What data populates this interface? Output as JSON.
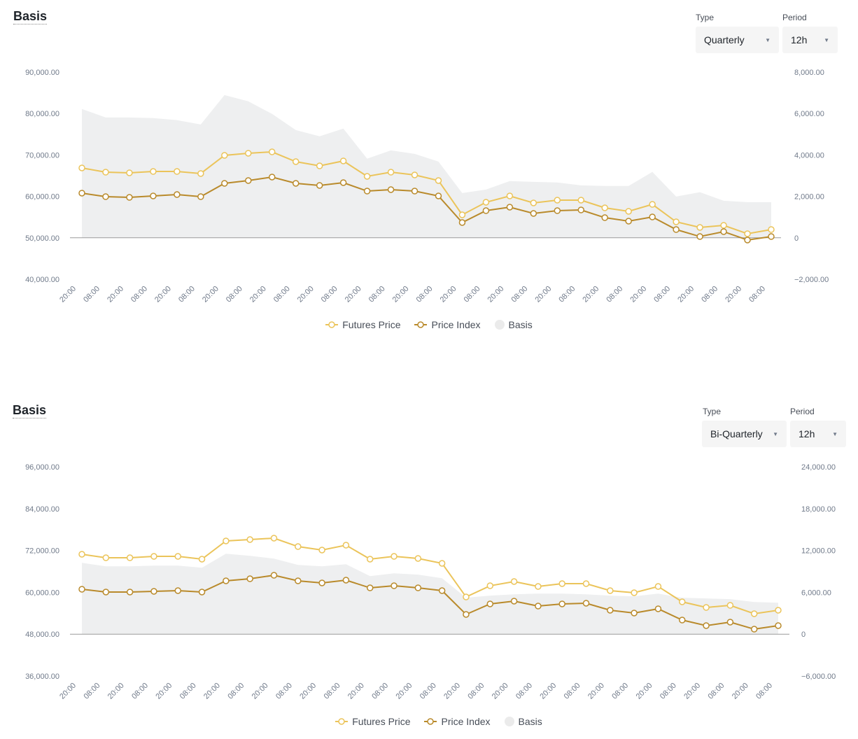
{
  "colors": {
    "futures": "#ebc45a",
    "index": "#b98a2b",
    "basis": "#eeeff0"
  },
  "chart_data": [
    {
      "type": "line",
      "title": "Basis",
      "type_label": "Type",
      "type_value": "Quarterly",
      "period_label": "Period",
      "period_value": "12h",
      "x": [
        "20:00",
        "08:00",
        "20:00",
        "08:00",
        "20:00",
        "08:00",
        "20:00",
        "08:00",
        "20:00",
        "08:00",
        "20:00",
        "08:00",
        "20:00",
        "08:00",
        "20:00",
        "08:00",
        "20:00",
        "08:00",
        "20:00",
        "08:00",
        "20:00",
        "08:00",
        "20:00",
        "08:00",
        "20:00",
        "08:00",
        "20:00",
        "08:00",
        "20:00",
        "08:00"
      ],
      "ylim_left": [
        40000,
        90000
      ],
      "ylim_right": [
        -2000,
        8000
      ],
      "left_ticks": [
        "90,000.00",
        "80,000.00",
        "70,000.00",
        "60,000.00",
        "50,000.00",
        "40,000.00"
      ],
      "right_ticks": [
        "8,000.00",
        "6,000.00",
        "4,000.00",
        "2,000.00",
        "0",
        "−2,000.00"
      ],
      "series": [
        {
          "name": "Futures Price",
          "axis": "left",
          "values": [
            66860,
            65840,
            65680,
            66010,
            66010,
            65510,
            69900,
            70410,
            70740,
            68380,
            67360,
            68550,
            64830,
            65840,
            65170,
            63820,
            55540,
            58580,
            60100,
            58410,
            59090,
            59090,
            57230,
            56390,
            58070,
            53850,
            52500,
            53000,
            50980,
            51990
          ]
        },
        {
          "name": "Price Index",
          "axis": "left",
          "values": [
            60780,
            59930,
            59760,
            60100,
            60440,
            59930,
            63140,
            63820,
            64660,
            63140,
            62640,
            63310,
            61280,
            61620,
            61280,
            60100,
            53680,
            56550,
            57400,
            55880,
            56550,
            56720,
            54860,
            54020,
            55030,
            51990,
            50300,
            51490,
            49460,
            50300
          ]
        },
        {
          "name": "Basis",
          "axis": "right",
          "type": "area",
          "values": [
            6220,
            5810,
            5810,
            5780,
            5680,
            5470,
            6890,
            6590,
            5980,
            5200,
            4900,
            5270,
            3820,
            4220,
            4050,
            3680,
            2160,
            2330,
            2740,
            2700,
            2670,
            2530,
            2500,
            2500,
            3180,
            1990,
            2200,
            1790,
            1720,
            1720
          ]
        }
      ],
      "legend": [
        "Futures Price",
        "Price Index",
        "Basis"
      ],
      "legend_position": "bottom-center"
    },
    {
      "type": "line",
      "title": "Basis",
      "type_label": "Type",
      "type_value": "Bi-Quarterly",
      "period_label": "Period",
      "period_value": "12h",
      "x": [
        "20:00",
        "08:00",
        "20:00",
        "08:00",
        "20:00",
        "08:00",
        "20:00",
        "08:00",
        "20:00",
        "08:00",
        "20:00",
        "08:00",
        "20:00",
        "08:00",
        "20:00",
        "08:00",
        "20:00",
        "08:00",
        "20:00",
        "08:00",
        "20:00",
        "08:00",
        "20:00",
        "08:00",
        "20:00",
        "08:00",
        "20:00",
        "08:00",
        "20:00",
        "08:00"
      ],
      "ylim_left": [
        36000,
        96000
      ],
      "ylim_right": [
        -6000,
        24000
      ],
      "left_ticks": [
        "96,000.00",
        "84,000.00",
        "72,000.00",
        "60,000.00",
        "48,000.00",
        "36,000.00"
      ],
      "right_ticks": [
        "24,000.00",
        "18,000.00",
        "12,000.00",
        "6,000.00",
        "0",
        "−6,000.00"
      ],
      "series": [
        {
          "name": "Futures Price",
          "axis": "left",
          "values": [
            70915,
            69910,
            69910,
            70310,
            70310,
            69510,
            74730,
            75130,
            75530,
            73120,
            72120,
            73520,
            69510,
            70310,
            69710,
            68310,
            58670,
            61880,
            63090,
            61680,
            62490,
            62490,
            60480,
            59880,
            61680,
            57270,
            55660,
            56260,
            53860,
            54860
          ]
        },
        {
          "name": "Price Index",
          "axis": "left",
          "values": [
            60880,
            60080,
            60080,
            60280,
            60480,
            60080,
            63290,
            63890,
            64890,
            63290,
            62690,
            63490,
            61280,
            61880,
            61280,
            60480,
            53660,
            56670,
            57470,
            56060,
            56670,
            56870,
            54860,
            54060,
            55270,
            52050,
            50450,
            51450,
            49440,
            50450
          ]
        },
        {
          "name": "Basis",
          "axis": "right",
          "type": "area",
          "values": [
            10230,
            9730,
            9730,
            9830,
            9830,
            9530,
            11530,
            11230,
            10830,
            9930,
            9730,
            10030,
            8320,
            8730,
            8530,
            8020,
            5220,
            5520,
            5720,
            5820,
            5820,
            5720,
            5520,
            5420,
            5820,
            5220,
            5120,
            5020,
            4610,
            4510
          ]
        }
      ],
      "legend": [
        "Futures Price",
        "Price Index",
        "Basis"
      ],
      "legend_position": "bottom-center"
    }
  ]
}
